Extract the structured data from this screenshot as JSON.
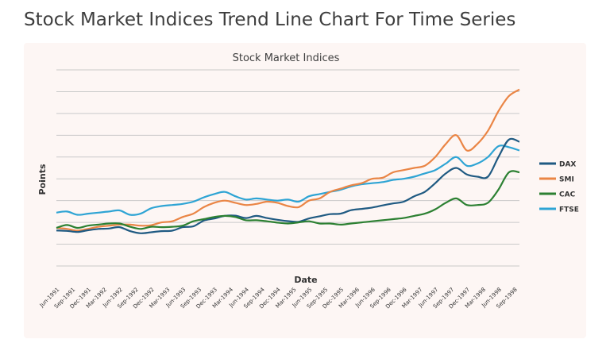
{
  "slide_title": "Stock Market Indices Trend Line Chart For Time Series",
  "chart_data": {
    "type": "line",
    "title": "Stock Market Indices",
    "xlabel": "Date",
    "ylabel": "Points",
    "x_ticks": [
      "Jun-1991",
      "Sep-1991",
      "Dec-1991",
      "Mar-1992",
      "Jun-1992",
      "Sep-1992",
      "Dec-1992",
      "Mar-1993",
      "Jun-1993",
      "Sep-1993",
      "Dec-1993",
      "Mar-1994",
      "Jun-1994",
      "Sep-1994",
      "Dec-1994",
      "Mar-1995",
      "Jun-1995",
      "Sep-1995",
      "Dec-1995",
      "Mar-1996",
      "Jun-1996",
      "Sep-1996",
      "Dec-1996",
      "Mar-1997",
      "Jun-1997",
      "Sep-1997",
      "Dec-1997",
      "Mar-1998",
      "Jun-1998",
      "Sep-1998"
    ],
    "x": [
      "Jun-1991",
      "Aug-1991",
      "Oct-1991",
      "Dec-1991",
      "Feb-1992",
      "Apr-1992",
      "Jun-1992",
      "Aug-1992",
      "Oct-1992",
      "Dec-1992",
      "Feb-1993",
      "Apr-1993",
      "Jun-1993",
      "Aug-1993",
      "Oct-1993",
      "Dec-1993",
      "Feb-1994",
      "Apr-1994",
      "Jun-1994",
      "Aug-1994",
      "Oct-1994",
      "Dec-1994",
      "Feb-1995",
      "Apr-1995",
      "Jun-1995",
      "Aug-1995",
      "Oct-1995",
      "Dec-1995",
      "Feb-1996",
      "Apr-1996",
      "Jun-1996",
      "Aug-1996",
      "Oct-1996",
      "Dec-1996",
      "Feb-1997",
      "Apr-1997",
      "Jun-1997",
      "Aug-1997",
      "Oct-1997",
      "Dec-1997",
      "Feb-1998",
      "Apr-1998",
      "Jun-1998",
      "Aug-1998",
      "Oct-1998"
    ],
    "ylim": [
      0,
      9000
    ],
    "grid": true,
    "legend": "right",
    "series": [
      {
        "name": "DAX",
        "color": "#1f5a82",
        "values": [
          1630,
          1610,
          1560,
          1640,
          1700,
          1720,
          1780,
          1600,
          1500,
          1550,
          1600,
          1620,
          1780,
          1820,
          2080,
          2180,
          2300,
          2310,
          2200,
          2300,
          2200,
          2120,
          2060,
          2030,
          2180,
          2280,
          2380,
          2400,
          2560,
          2620,
          2680,
          2780,
          2870,
          2950,
          3200,
          3400,
          3800,
          4250,
          4500,
          4200,
          4100,
          4100,
          5000,
          5800,
          5700
        ]
      },
      {
        "name": "SMI",
        "color": "#ea8545",
        "values": [
          1750,
          1700,
          1620,
          1700,
          1800,
          1850,
          1900,
          1900,
          1850,
          1870,
          2000,
          2050,
          2250,
          2400,
          2700,
          2900,
          3000,
          2900,
          2800,
          2850,
          2950,
          2900,
          2750,
          2700,
          3000,
          3100,
          3400,
          3550,
          3700,
          3800,
          4000,
          4050,
          4300,
          4400,
          4500,
          4600,
          5000,
          5600,
          6000,
          5300,
          5600,
          6200,
          7100,
          7800,
          8100
        ]
      },
      {
        "name": "CAC",
        "color": "#2c8032",
        "values": [
          1750,
          1880,
          1750,
          1850,
          1900,
          1950,
          1950,
          1800,
          1700,
          1800,
          1780,
          1800,
          1850,
          2050,
          2150,
          2250,
          2300,
          2250,
          2100,
          2100,
          2050,
          1990,
          1950,
          2000,
          2050,
          1950,
          1950,
          1900,
          1950,
          2000,
          2050,
          2100,
          2150,
          2200,
          2300,
          2400,
          2600,
          2900,
          3100,
          2800,
          2800,
          2900,
          3500,
          4300,
          4300
        ]
      },
      {
        "name": "FTSE",
        "color": "#2ea4d4",
        "values": [
          2450,
          2500,
          2350,
          2400,
          2450,
          2500,
          2550,
          2350,
          2400,
          2650,
          2750,
          2800,
          2850,
          2950,
          3150,
          3300,
          3400,
          3200,
          3050,
          3100,
          3050,
          3000,
          3050,
          2950,
          3200,
          3300,
          3400,
          3500,
          3650,
          3750,
          3800,
          3850,
          3950,
          4000,
          4100,
          4250,
          4400,
          4700,
          5000,
          4600,
          4700,
          5000,
          5500,
          5450,
          5300
        ]
      }
    ]
  }
}
